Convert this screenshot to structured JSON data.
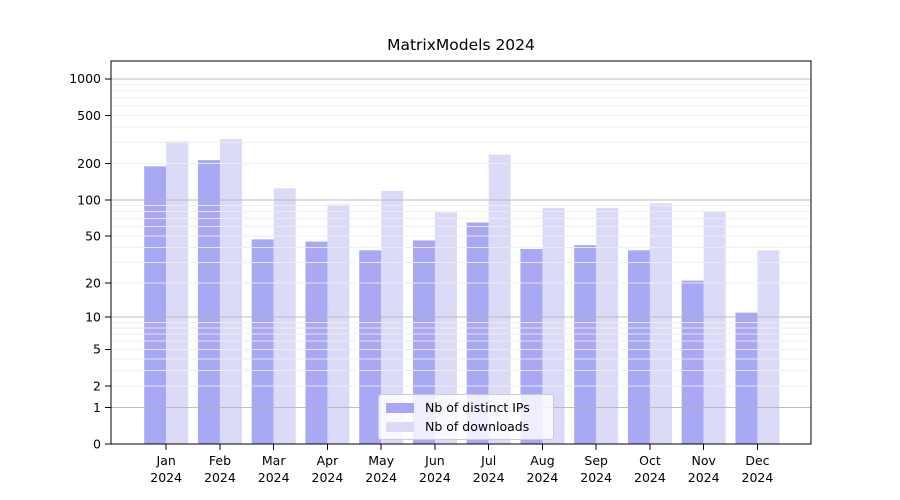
{
  "chart_data": {
    "type": "bar",
    "title": "MatrixModels 2024",
    "categories": [
      "Jan 2024",
      "Feb 2024",
      "Mar 2024",
      "Apr 2024",
      "May 2024",
      "Jun 2024",
      "Jul 2024",
      "Aug 2024",
      "Sep 2024",
      "Oct 2024",
      "Nov 2024",
      "Dec 2024"
    ],
    "series": [
      {
        "name": "Nb of distinct IPs",
        "color": "#a8a8f4",
        "values": [
          190,
          214,
          47,
          45,
          38,
          46,
          65,
          39,
          42,
          38,
          21,
          11
        ]
      },
      {
        "name": "Nb of downloads",
        "color": "#dbdbf8",
        "values": [
          305,
          319,
          125,
          92,
          119,
          79,
          238,
          86,
          86,
          94,
          80,
          38
        ]
      }
    ],
    "yscale": "log1p",
    "ylim": [
      0,
      1400
    ],
    "yticks": [
      0,
      1,
      2,
      5,
      10,
      20,
      50,
      100,
      200,
      500,
      1000
    ],
    "major_gridlines": [
      1,
      10,
      100,
      1000
    ],
    "grid": true,
    "legend_position": "lower center",
    "colors": {
      "axis": "#000000",
      "major_grid": "#b3b3b3",
      "minor_grid": "#ededed",
      "text": "#000000"
    }
  }
}
